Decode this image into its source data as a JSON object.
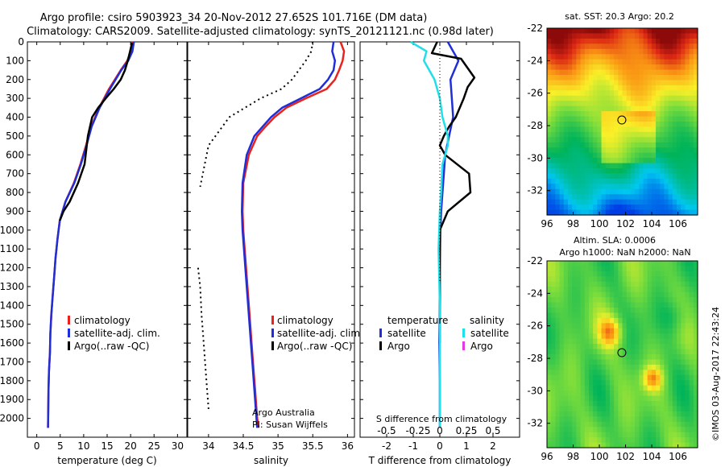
{
  "title": {
    "line1": "Argo profile: csiro 5903923_34 20-Nov-2012 27.652S 101.716E (DM data)",
    "line2": "Climatology: CARS2009. Satellite-adjusted climatology: synTS_20121121.nc (0.98d later)"
  },
  "colors": {
    "climatology": "#e8231e",
    "satellite": "#1f2ed6",
    "argo": "#000000",
    "sat_salinity": "#1fe0e8",
    "argo_salinity": "#e03ce0"
  },
  "chart_data": [
    {
      "type": "line",
      "name": "temperature-panel",
      "xlabel": "temperature (deg C)",
      "xlim": [
        -2,
        32
      ],
      "ylim": [
        2100,
        0
      ],
      "xticks": [
        0,
        5,
        10,
        15,
        20,
        25,
        30
      ],
      "yticks": [
        0,
        100,
        200,
        300,
        400,
        500,
        600,
        700,
        800,
        900,
        1000,
        1100,
        1200,
        1300,
        1400,
        1500,
        1600,
        1700,
        1800,
        1900,
        2000
      ],
      "legend": [
        "climatology",
        "satellite-adj. clim.",
        "Argo(..raw -QC)"
      ],
      "series": [
        {
          "name": "climatology",
          "color": "#e8231e",
          "x": [
            20.5,
            20.1,
            19.3,
            17.9,
            15.4,
            13.3,
            11.6,
            10.5,
            9.3,
            7.9,
            6.1,
            4.9,
            4.4,
            4.0,
            3.7,
            3.4,
            3.1,
            2.9,
            2.8,
            2.6,
            2.5,
            2.4
          ],
          "y": [
            0,
            50,
            100,
            150,
            250,
            350,
            450,
            550,
            650,
            750,
            850,
            950,
            1050,
            1150,
            1250,
            1350,
            1450,
            1550,
            1650,
            1750,
            1850,
            2050
          ]
        },
        {
          "name": "satellite-adj. clim.",
          "color": "#1f2ed6",
          "x": [
            20.7,
            20.4,
            19.5,
            18.0,
            15.6,
            13.4,
            11.7,
            10.6,
            9.4,
            8.0,
            6.1,
            4.9,
            4.4,
            4.0,
            3.7,
            3.4,
            3.1,
            2.9,
            2.8,
            2.6,
            2.5,
            2.4
          ],
          "y": [
            0,
            50,
            100,
            150,
            250,
            350,
            450,
            550,
            650,
            750,
            850,
            950,
            1050,
            1150,
            1250,
            1350,
            1450,
            1550,
            1650,
            1750,
            1850,
            2050
          ]
        },
        {
          "name": "Argo(..raw -QC)",
          "color": "#000000",
          "x": [
            20.3,
            19.9,
            19.4,
            18.8,
            17.9,
            16.4,
            14.7,
            13.1,
            11.8,
            10.9,
            10.2,
            8.8,
            7.0,
            5.7,
            4.9
          ],
          "y": [
            5,
            50,
            100,
            150,
            200,
            250,
            300,
            350,
            400,
            500,
            650,
            750,
            850,
            900,
            950
          ]
        }
      ]
    },
    {
      "type": "line",
      "name": "salinity-panel",
      "xlabel": "salinity",
      "xlim": [
        33.7,
        36.1
      ],
      "ylim": [
        2100,
        0
      ],
      "xticks": [
        34,
        34.5,
        35,
        35.5,
        36
      ],
      "legend": [
        "climatology",
        "satellite-adj. clim.",
        "Argo(..raw -QC)"
      ],
      "annotation": [
        "Argo Australia",
        "PI: Susan Wijffels"
      ],
      "series": [
        {
          "name": "climatology",
          "color": "#e8231e",
          "x": [
            35.9,
            35.95,
            35.93,
            35.88,
            35.82,
            35.7,
            35.4,
            35.12,
            34.95,
            34.82,
            34.7,
            34.58,
            34.5,
            34.49,
            34.5,
            34.53,
            34.56,
            34.59,
            34.62,
            34.65,
            34.67,
            34.69,
            34.7,
            34.72
          ],
          "y": [
            0,
            50,
            100,
            150,
            200,
            250,
            300,
            350,
            400,
            450,
            500,
            600,
            750,
            900,
            1000,
            1150,
            1300,
            1450,
            1600,
            1750,
            1850,
            1950,
            2000,
            2050
          ]
        },
        {
          "name": "satellite-adj. clim.",
          "color": "#1f2ed6",
          "x": [
            35.8,
            35.78,
            35.82,
            35.8,
            35.72,
            35.6,
            35.33,
            35.06,
            34.9,
            34.78,
            34.66,
            34.55,
            34.49,
            34.48,
            34.49,
            34.52,
            34.55,
            34.58,
            34.61,
            34.64,
            34.66,
            34.68,
            34.69,
            34.7
          ],
          "y": [
            0,
            50,
            100,
            150,
            200,
            250,
            300,
            350,
            400,
            450,
            500,
            600,
            750,
            900,
            1000,
            1150,
            1300,
            1450,
            1600,
            1750,
            1850,
            1950,
            2000,
            2050
          ]
        },
        {
          "name": "Argo(..raw -QC)",
          "color": "#000000",
          "dashed": true,
          "x": [
            35.5,
            35.48,
            35.4,
            35.3,
            35.2,
            35.05,
            34.75,
            34.3,
            34.0,
            33.88
          ],
          "y": [
            0,
            50,
            100,
            150,
            200,
            250,
            300,
            400,
            550,
            770
          ]
        },
        {
          "name": "Argo(..raw -QC) deep",
          "color": "#000000",
          "dashed": true,
          "x": [
            33.85,
            33.88,
            33.9,
            33.92,
            33.94,
            33.96,
            33.98,
            34.0
          ],
          "y": [
            1200,
            1300,
            1450,
            1550,
            1650,
            1750,
            1850,
            1950
          ]
        }
      ]
    },
    {
      "type": "line",
      "name": "difference-panel",
      "xlabel": "T difference from climatology",
      "xlabel_top": "S difference from climatology",
      "xlim": [
        -3,
        3
      ],
      "ylim": [
        2100,
        0
      ],
      "xticks": [
        -2,
        -1,
        0,
        1,
        2
      ],
      "xticks_salinity": [
        "-0.5",
        "-0.25",
        "0",
        "0.25",
        "0.5"
      ],
      "legend_left_title": "temperature",
      "legend_right_title": "salinity",
      "legend": [
        "satellite",
        "Argo",
        "satellite",
        "Argo"
      ],
      "series": [
        {
          "name": "satellite",
          "color": "#1f2ed6",
          "x": [
            0.3,
            0.5,
            0.7,
            0.55,
            0.4,
            0.45,
            0.5,
            0.35,
            0.2,
            0.15,
            0.1,
            0.05,
            0.02,
            0.0,
            0.0,
            -0.02,
            0.0,
            0.0
          ],
          "y": [
            0,
            50,
            100,
            150,
            200,
            300,
            400,
            500,
            600,
            700,
            800,
            900,
            1000,
            1200,
            1400,
            1600,
            1800,
            2050
          ]
        },
        {
          "name": "Argo",
          "color": "#000000",
          "x": [
            -0.1,
            -0.3,
            0.8,
            1.3,
            1.05,
            0.9,
            0.6,
            0.35,
            0.15,
            0.0,
            0.2,
            1.1,
            1.15,
            0.3,
            0.0,
            0.0,
            0.0
          ],
          "y": [
            0,
            60,
            90,
            190,
            240,
            300,
            400,
            450,
            500,
            550,
            600,
            700,
            800,
            900,
            1000,
            1200,
            1600
          ]
        },
        {
          "name": "satellite salinity",
          "color": "#1fe0e8",
          "x": [
            -1.1,
            -0.5,
            -0.6,
            -0.2,
            0.0,
            0.1,
            0.3,
            0.3,
            0.1,
            0.05,
            0.0,
            -0.05,
            0.0,
            0.0,
            0.0
          ],
          "y": [
            0,
            50,
            100,
            200,
            300,
            400,
            500,
            550,
            650,
            800,
            900,
            1100,
            1400,
            1700,
            2050
          ]
        }
      ]
    },
    {
      "type": "heatmap",
      "name": "sst-map",
      "title": "sat. SST: 20.3 Argo: 20.2",
      "xticks": [
        96,
        98,
        100,
        102,
        104,
        106
      ],
      "yticks": [
        -22,
        -24,
        -26,
        -28,
        -30,
        -32
      ],
      "xlim": [
        96,
        107.5
      ],
      "ylim": [
        -33.5,
        -22
      ],
      "marker": {
        "lon": 101.716,
        "lat": -27.652
      }
    },
    {
      "type": "heatmap",
      "name": "sla-map",
      "title": "Altim. SLA: 0.0006",
      "subtitle": "Argo h1000: NaN h2000: NaN",
      "xticks": [
        96,
        98,
        100,
        102,
        104,
        106
      ],
      "yticks": [
        -22,
        -24,
        -26,
        -28,
        -30,
        -32
      ],
      "xlim": [
        96,
        107.5
      ],
      "ylim": [
        -33.5,
        -22
      ],
      "marker": {
        "lon": 101.716,
        "lat": -27.652
      }
    }
  ],
  "footer": "©IMOS 03-Aug-2017 22:43:24"
}
